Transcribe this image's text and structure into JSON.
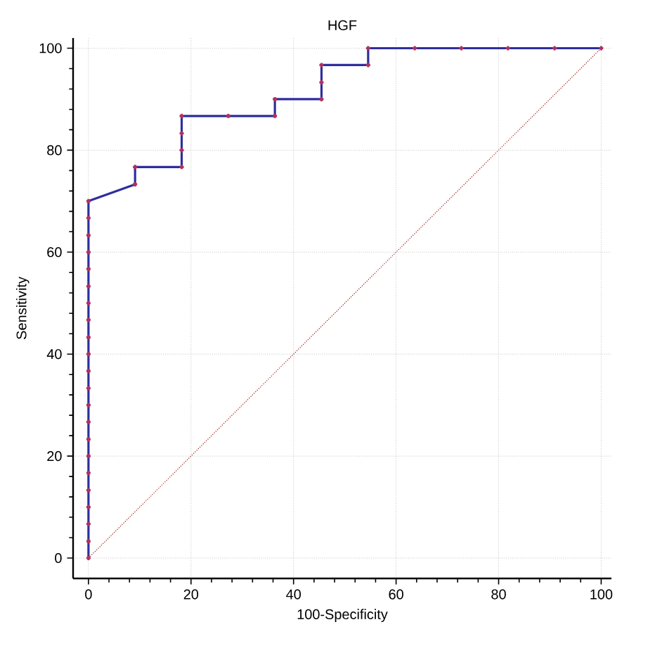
{
  "chart_data": {
    "type": "line",
    "title": "HGF",
    "xlabel": "100-Specificity",
    "ylabel": "Sensitivity",
    "xlim": [
      -3,
      102
    ],
    "ylim": [
      -4,
      102
    ],
    "xticks": [
      0,
      20,
      40,
      60,
      80,
      100
    ],
    "yticks": [
      0,
      20,
      40,
      60,
      80,
      100
    ],
    "grid": true,
    "series": [
      {
        "color": "#2e2e9e",
        "marker": "cross",
        "line_style": "solid",
        "x": [
          0,
          0,
          0,
          0,
          0,
          0,
          0,
          0,
          0,
          0,
          0,
          0,
          0,
          0,
          0,
          0,
          0,
          0,
          0,
          0,
          0,
          0,
          9.09,
          9.09,
          18.18,
          18.18,
          18.18,
          18.18,
          27.27,
          36.36,
          36.36,
          45.45,
          45.45,
          45.45,
          54.55,
          54.55,
          63.64,
          72.73,
          81.82,
          90.91,
          100
        ],
        "values": [
          0,
          3.3,
          6.7,
          10,
          13.3,
          16.7,
          20,
          23.3,
          26.7,
          30,
          33.3,
          36.7,
          40,
          43.3,
          46.7,
          50,
          53.3,
          56.7,
          60,
          63.3,
          66.7,
          70,
          73.3,
          76.7,
          76.7,
          80,
          83.3,
          86.7,
          86.7,
          86.7,
          90,
          90,
          93.3,
          96.7,
          96.7,
          100,
          100,
          100,
          100,
          100,
          100
        ]
      },
      {
        "color": "#a01010",
        "marker": "none",
        "line_style": "dotted",
        "x": [
          0,
          100
        ],
        "values": [
          0,
          100
        ]
      }
    ]
  }
}
